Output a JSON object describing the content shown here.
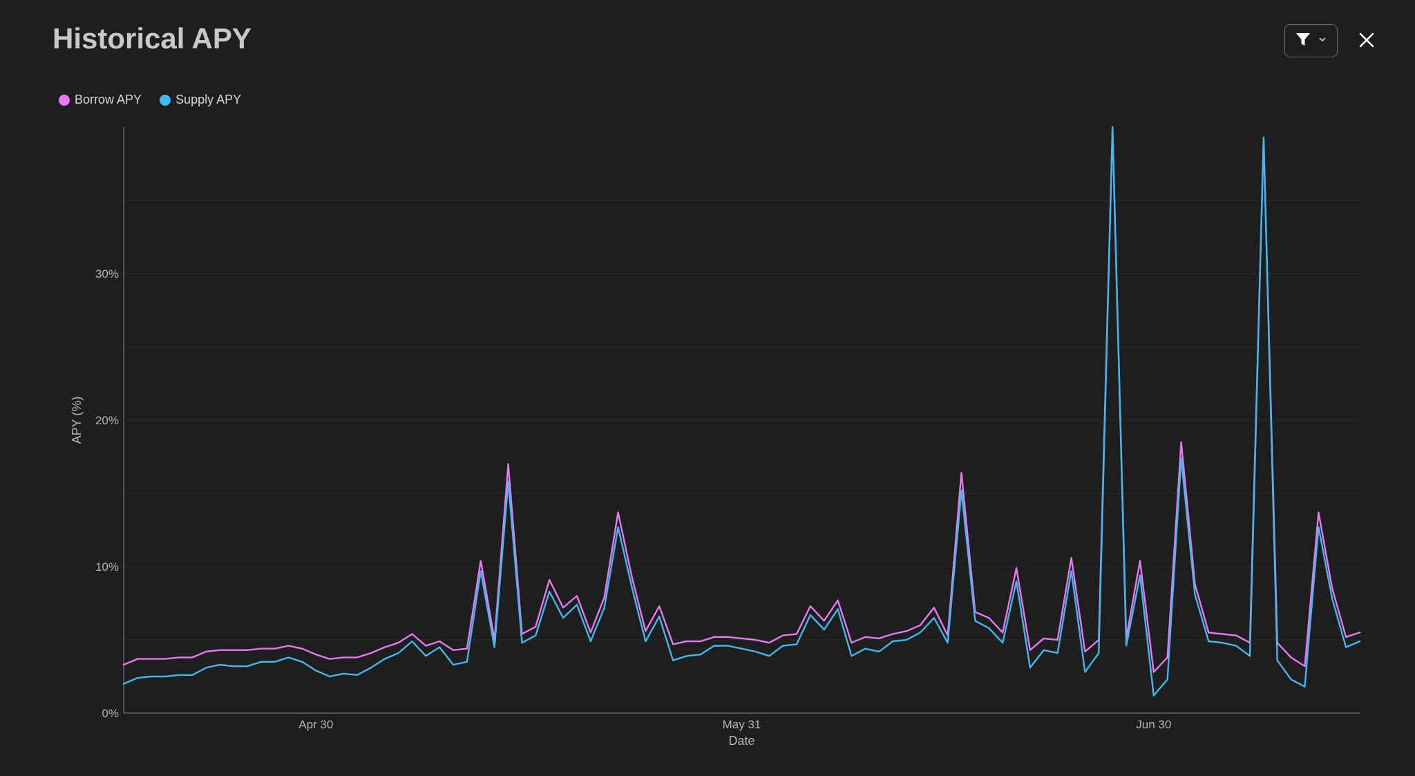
{
  "header": {
    "title": "Historical APY"
  },
  "toolbar": {
    "filter_icon": "filter-icon",
    "dropdown_icon": "chevron-down-icon",
    "close_icon": "close-icon"
  },
  "colors": {
    "borrow": "#e879f0",
    "supply": "#41b8ee",
    "background": "#1e1e1f"
  },
  "chart_data": {
    "type": "line",
    "title": "Historical APY",
    "xlabel": "Date",
    "ylabel": "APY (%)",
    "ylim": [
      0,
      40
    ],
    "yticks": [
      0,
      10,
      20,
      30
    ],
    "ytick_labels": [
      "0%",
      "10%",
      "20%",
      "30%"
    ],
    "xticks": [
      {
        "index": 14,
        "label": "Apr 30"
      },
      {
        "index": 45,
        "label": "May 31"
      },
      {
        "index": 75,
        "label": "Jun 30"
      }
    ],
    "grid": true,
    "legend_position": "top-left",
    "series": [
      {
        "name": "Borrow APY",
        "values": [
          3.3,
          3.7,
          3.7,
          3.7,
          3.8,
          3.8,
          4.2,
          4.3,
          4.3,
          4.3,
          4.4,
          4.4,
          4.6,
          4.4,
          4.0,
          3.7,
          3.8,
          3.8,
          4.1,
          4.5,
          4.8,
          5.4,
          4.6,
          4.9,
          4.3,
          4.4,
          10.4,
          5.0,
          17.0,
          5.4,
          5.9,
          9.1,
          7.2,
          8.0,
          5.5,
          7.9,
          13.7,
          9.3,
          5.6,
          7.3,
          4.7,
          4.9,
          4.9,
          5.2,
          5.2,
          5.1,
          5.0,
          4.8,
          5.3,
          5.4,
          7.3,
          6.3,
          7.7,
          4.8,
          5.2,
          5.1,
          5.4,
          5.6,
          6.0,
          7.2,
          5.3,
          16.4,
          6.9,
          6.5,
          5.5,
          9.9,
          4.3,
          5.1,
          5.0,
          10.6,
          4.2,
          5.0,
          40.0,
          5.1,
          10.4,
          2.8,
          3.8,
          18.5,
          8.8,
          5.5,
          5.4,
          5.3,
          4.8,
          39.2,
          4.8,
          3.8,
          3.2,
          13.7,
          8.5,
          5.2,
          5.5
        ]
      },
      {
        "name": "Supply APY",
        "values": [
          2.0,
          2.4,
          2.5,
          2.5,
          2.6,
          2.6,
          3.1,
          3.3,
          3.2,
          3.2,
          3.5,
          3.5,
          3.8,
          3.5,
          2.9,
          2.5,
          2.7,
          2.6,
          3.1,
          3.7,
          4.1,
          4.9,
          3.9,
          4.5,
          3.3,
          3.5,
          9.7,
          4.5,
          15.8,
          4.8,
          5.3,
          8.3,
          6.5,
          7.4,
          4.9,
          7.2,
          12.7,
          8.6,
          4.9,
          6.6,
          3.6,
          3.9,
          4.0,
          4.6,
          4.6,
          4.4,
          4.2,
          3.9,
          4.6,
          4.7,
          6.7,
          5.7,
          7.1,
          3.9,
          4.4,
          4.2,
          4.9,
          5.0,
          5.5,
          6.5,
          4.8,
          15.2,
          6.3,
          5.8,
          4.8,
          9.0,
          3.1,
          4.3,
          4.1,
          9.7,
          2.8,
          4.1,
          40.0,
          4.6,
          9.4,
          1.2,
          2.3,
          17.4,
          8.1,
          4.9,
          4.8,
          4.6,
          3.9,
          39.3,
          3.6,
          2.3,
          1.8,
          12.7,
          7.8,
          4.5,
          4.9
        ]
      }
    ]
  }
}
